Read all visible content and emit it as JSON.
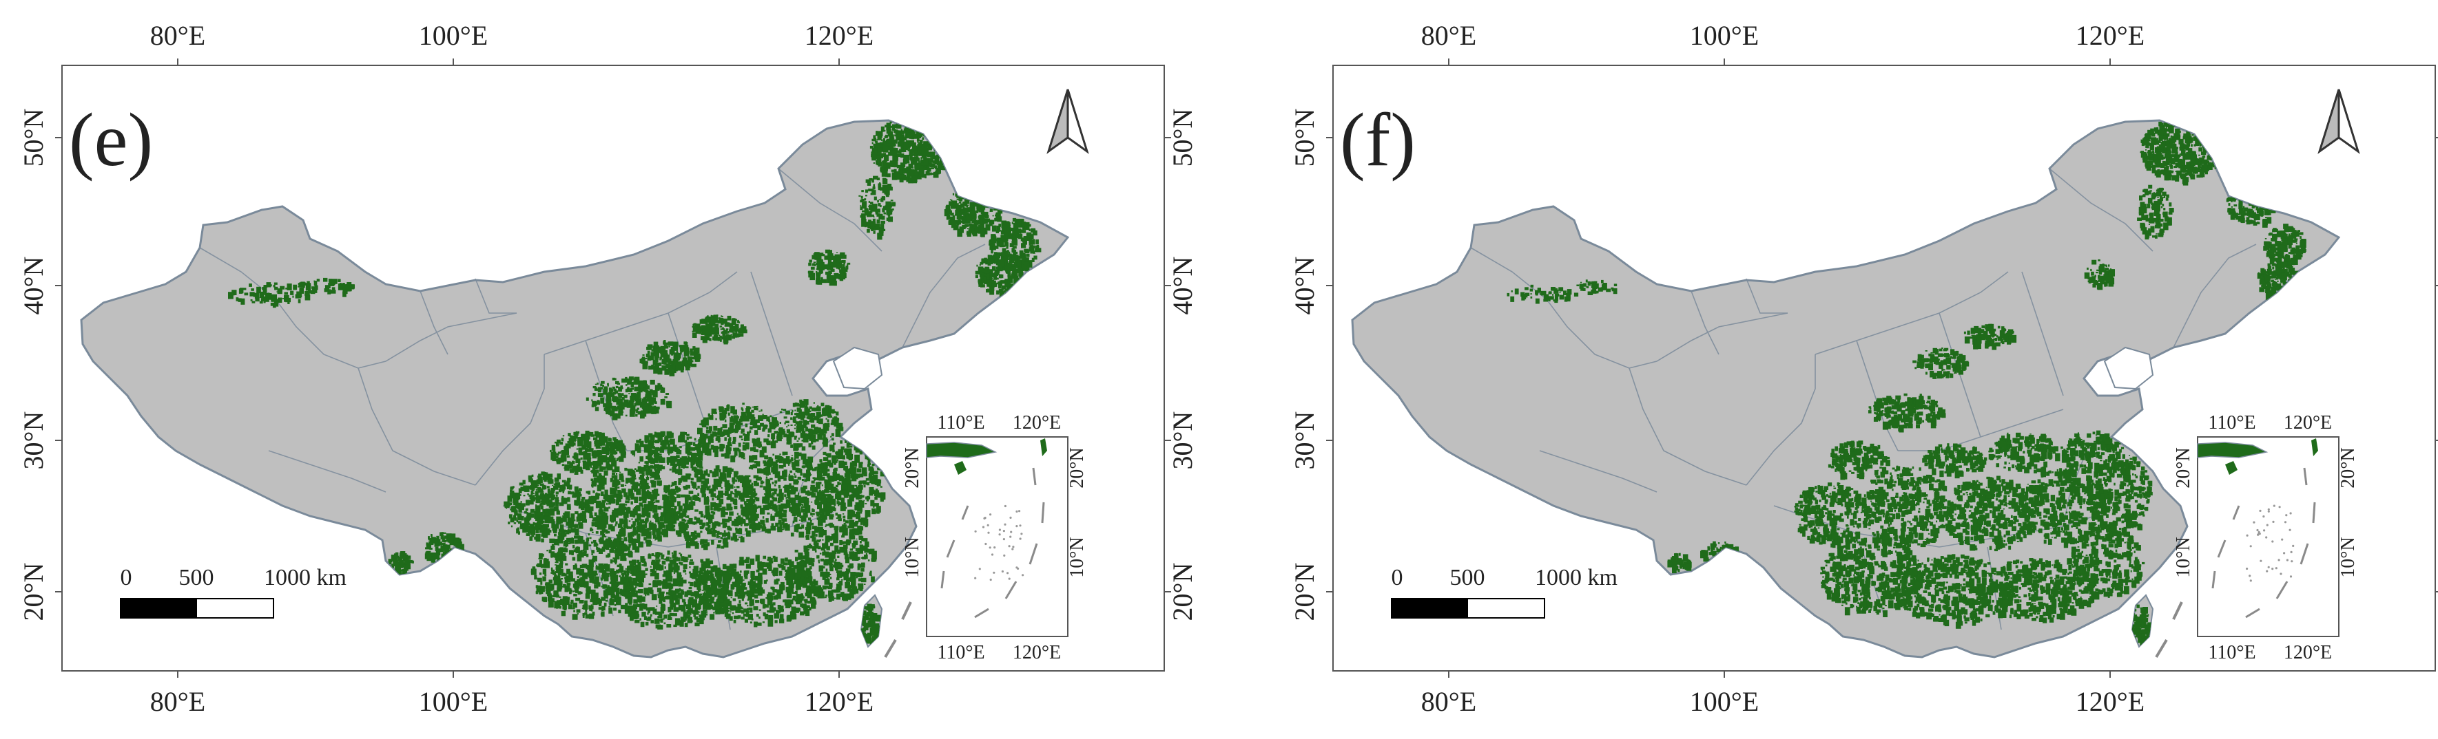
{
  "panels": [
    {
      "id": "e",
      "label": "(e)",
      "top_lon_labels": [
        "80°E",
        "100°E",
        "120°E"
      ],
      "bottom_lon_labels": [
        "80°E",
        "100°E",
        "120°E"
      ],
      "lat_labels": [
        "50°N",
        "40°N",
        "30°N",
        "20°N"
      ],
      "scale_labels": [
        "0",
        "500",
        "1000 km"
      ],
      "inset": {
        "top_lon_labels": [
          "110°E",
          "120°E"
        ],
        "bottom_lon_labels": [
          "110°E",
          "120°E"
        ],
        "lat_labels": [
          "20°N",
          "10°N"
        ]
      }
    },
    {
      "id": "f",
      "label": "(f)",
      "top_lon_labels": [
        "80°E",
        "100°E",
        "120°E"
      ],
      "bottom_lon_labels": [
        "80°E",
        "100°E",
        "120°E"
      ],
      "lat_labels": [
        "50°N",
        "40°N",
        "30°N",
        "20°N"
      ],
      "scale_labels": [
        "0",
        "500",
        "1000 km"
      ],
      "inset": {
        "top_lon_labels": [
          "110°E",
          "120°E"
        ],
        "bottom_lon_labels": [
          "110°E",
          "120°E"
        ],
        "lat_labels": [
          "20°N",
          "10°N"
        ]
      }
    }
  ],
  "colors": {
    "land": "#bfbfbf",
    "boundary": "#7a8a9a",
    "vegetation": "#1f6b1a",
    "frame": "#555555",
    "sea": "#ffffff"
  },
  "icons": {
    "north_arrow": "north-arrow-icon"
  }
}
